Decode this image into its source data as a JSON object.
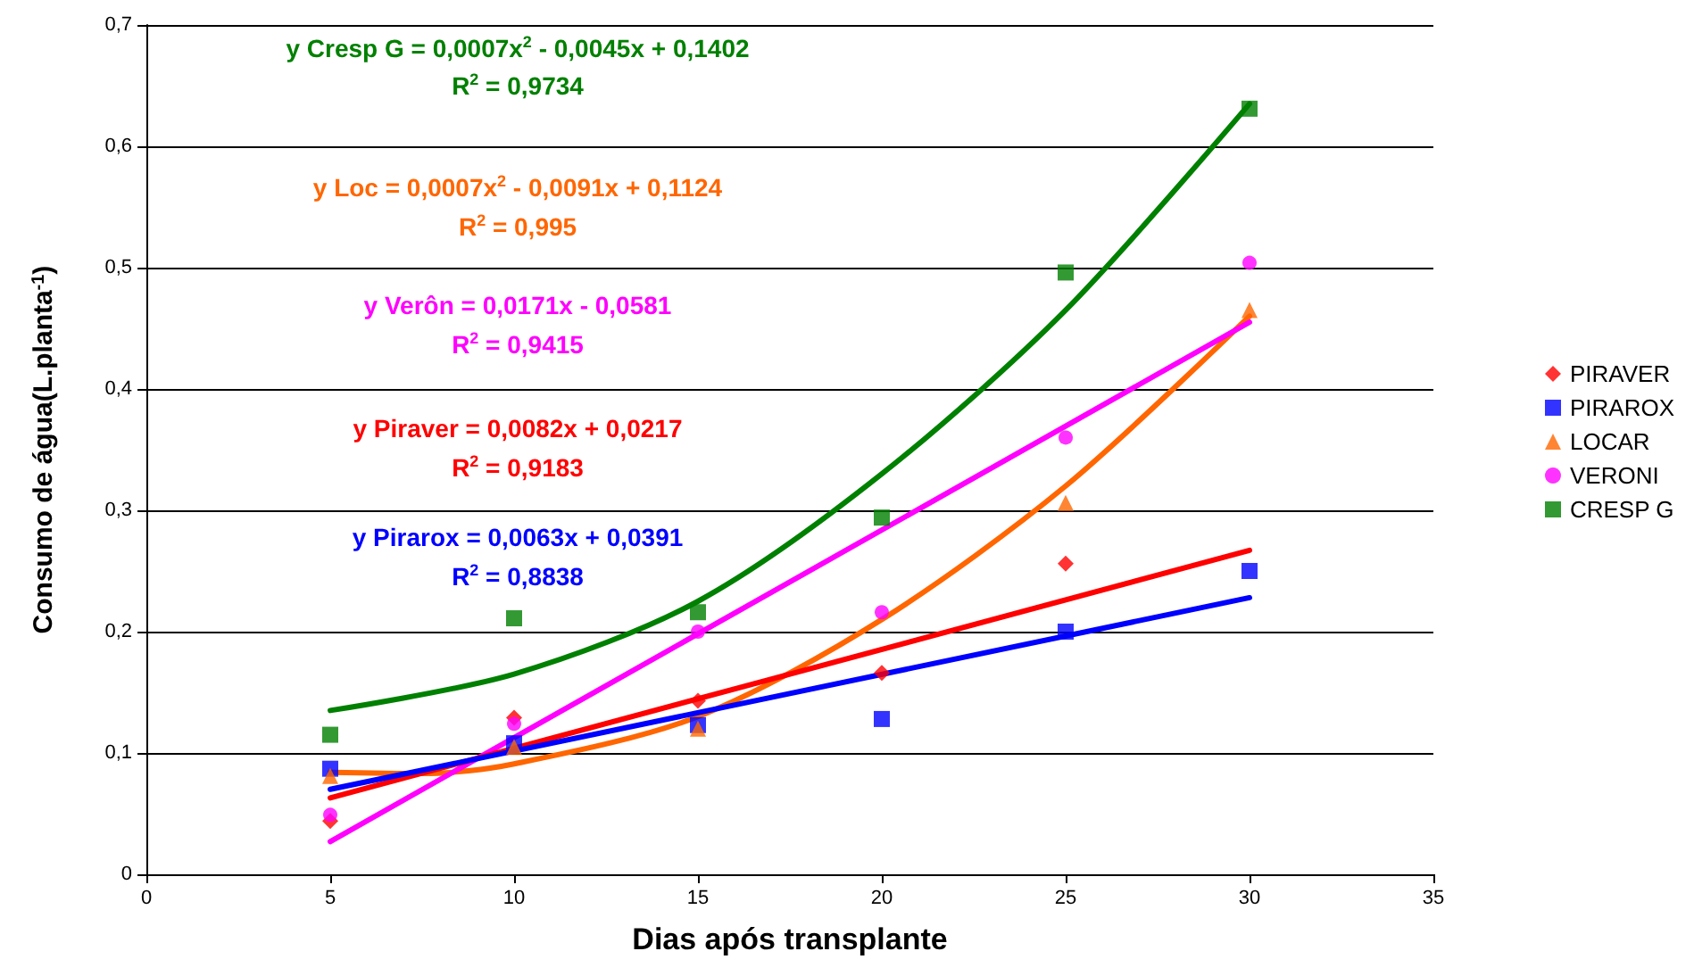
{
  "chart_data": {
    "type": "scatter",
    "xlabel": "Dias após transplante",
    "ylabel": "Consumo de água(L.planta$^{-1}$)",
    "x": [
      5,
      10,
      15,
      20,
      25,
      30
    ],
    "series": [
      {
        "name": "PIRAVER",
        "color": "#ff0000",
        "marker": "diamond",
        "values": [
          0.044,
          0.129,
          0.143,
          0.166,
          0.256,
          null
        ]
      },
      {
        "name": "PIRAROX",
        "color": "#0000ff",
        "marker": "square",
        "values": [
          0.087,
          0.108,
          0.123,
          0.128,
          0.2,
          0.25
        ]
      },
      {
        "name": "LOCAR",
        "color": "#ff6600",
        "marker": "triangle",
        "values": [
          0.081,
          0.105,
          0.12,
          null,
          0.306,
          0.465
        ]
      },
      {
        "name": "VERONI",
        "color": "#ff00ff",
        "marker": "circle",
        "values": [
          0.049,
          0.124,
          0.2,
          0.216,
          0.36,
          0.504
        ]
      },
      {
        "name": "CRESP G",
        "color": "#008000",
        "marker": "square",
        "values": [
          0.115,
          0.211,
          0.216,
          0.294,
          0.496,
          0.631
        ]
      },
      {
        "type": "line",
        "color": "#008000",
        "marker": "none",
        "x": [
          5,
          10,
          15,
          20,
          25,
          30
        ],
        "values": [
          0.135,
          0.165,
          0.225,
          0.33,
          0.465,
          0.635
        ]
      },
      {
        "type": "line",
        "color": "#ff6600",
        "marker": "none",
        "x": [
          5,
          7.5,
          10,
          15,
          20,
          25,
          30
        ],
        "values": [
          0.084,
          0.083,
          0.091,
          0.13,
          0.21,
          0.32,
          0.46
        ]
      },
      {
        "type": "line",
        "color": "#ff00ff",
        "marker": "none",
        "x": [
          5,
          30
        ],
        "values": [
          0.027,
          0.455
        ]
      },
      {
        "type": "line",
        "color": "#ff0000",
        "marker": "none",
        "x": [
          5,
          30
        ],
        "values": [
          0.063,
          0.267
        ]
      },
      {
        "type": "line",
        "color": "#0000ff",
        "marker": "none",
        "x": [
          5,
          30
        ],
        "values": [
          0.07,
          0.228
        ]
      }
    ],
    "xlim": [
      0,
      35
    ],
    "xticks": [
      0,
      5,
      10,
      15,
      20,
      25,
      30,
      35
    ],
    "ylim": [
      0,
      0.7
    ],
    "yticks": [
      {
        "value": 0,
        "label": "0"
      },
      {
        "value": 0.1,
        "label": "0,1"
      },
      {
        "value": 0.2,
        "label": "0,2"
      },
      {
        "value": 0.3,
        "label": "0,3"
      },
      {
        "value": 0.4,
        "label": "0,4"
      },
      {
        "value": 0.5,
        "label": "0,5"
      },
      {
        "value": 0.6,
        "label": "0,6"
      },
      {
        "value": 0.7,
        "label": "0,7"
      }
    ],
    "grid": "y",
    "legend": "right",
    "line_style": "solid",
    "annotations": [
      "y Cresp G = 0,0007x$^{2}$ - 0,0045x + 0,1402",
      "R$^{2}$ = 0,9734",
      "y Loc = 0,0007x$^{2}$ - 0,0091x + 0,1124",
      "R$^{2}$ = 0,995",
      "y Verôn = 0,0171x - 0,0581",
      "R$^{2}$ = 0,9415",
      "y Piraver = 0,0082x + 0,0217",
      "R$^{2}$ = 0,9183",
      "y Pirarox = 0,0063x + 0,0391",
      "R$^{2}$ = 0,8838"
    ]
  }
}
